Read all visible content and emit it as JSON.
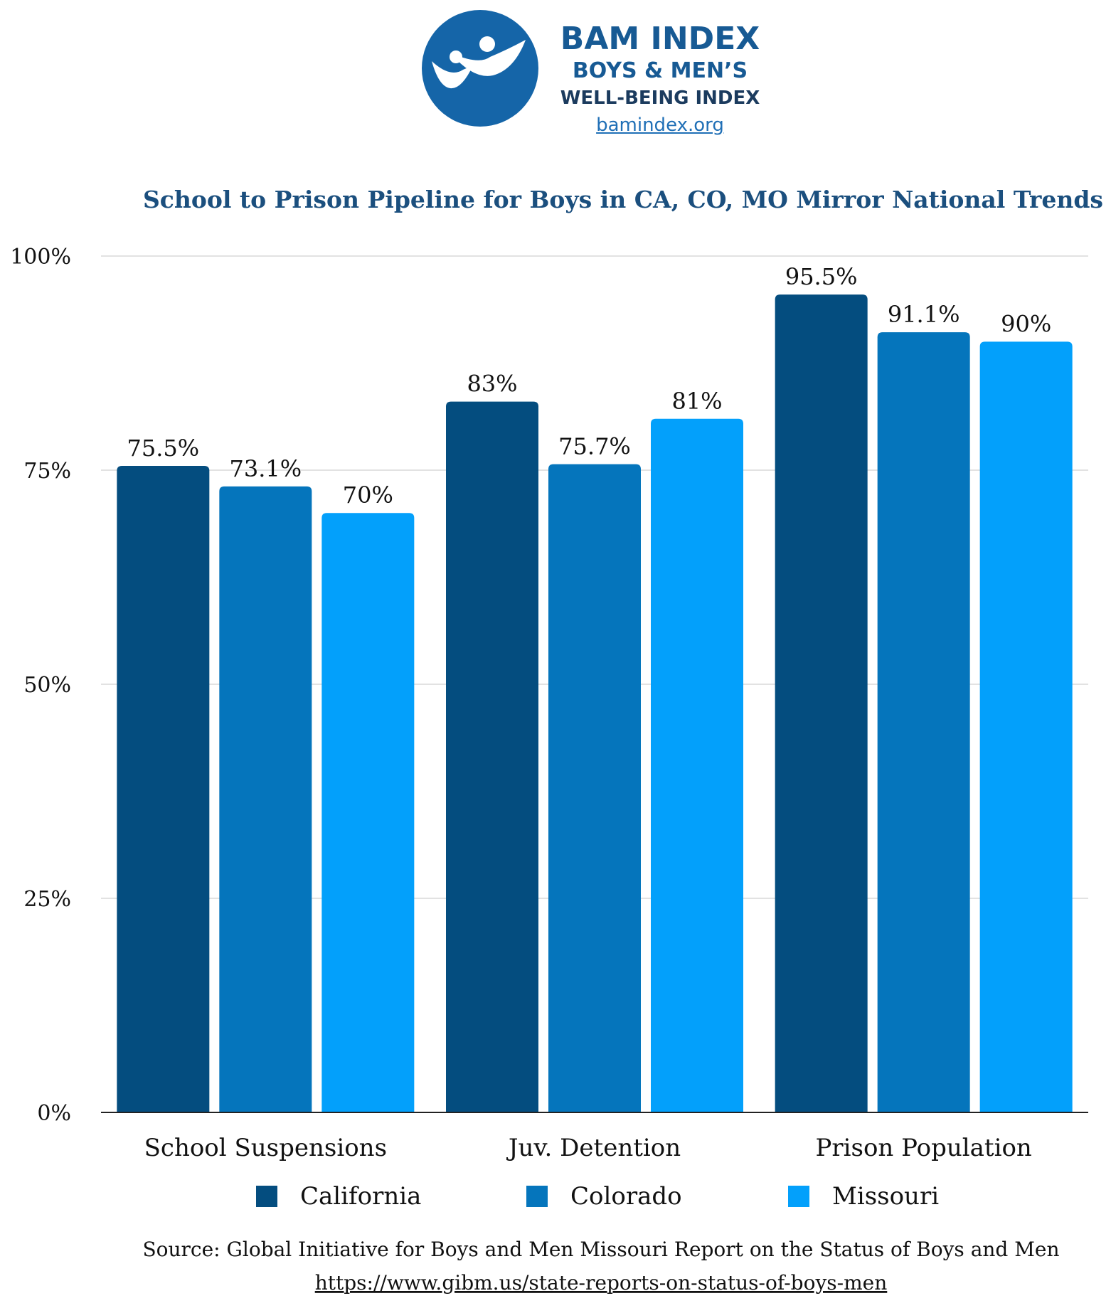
{
  "logo": {
    "line1": "BAM INDEX",
    "line2": "BOYS & MEN’S",
    "line3": "WELL-BEING INDEX",
    "url": "bamindex.org",
    "color": "#1565a8",
    "icon": "two-figures-icon"
  },
  "source": {
    "text": "Source: Global Initiative for Boys and Men Missouri Report on the Status of Boys and Men",
    "url": "https://www.gibm.us/state-reports-on-status-of-boys-men"
  },
  "chart_data": {
    "type": "bar",
    "title": "School to Prison Pipeline for Boys in CA, CO, MO Mirror National Trends",
    "categories": [
      "School Suspensions",
      "Juv. Detention",
      "Prison Population"
    ],
    "series": [
      {
        "name": "California",
        "color": "#044d7f",
        "values": [
          75.5,
          83,
          95.5
        ],
        "labels": [
          "75.5%",
          "83%",
          "95.5%"
        ]
      },
      {
        "name": "Colorado",
        "color": "#0575bc",
        "values": [
          73.1,
          75.7,
          91.1
        ],
        "labels": [
          "73.1%",
          "75.7%",
          "91.1%"
        ]
      },
      {
        "name": "Missouri",
        "color": "#03a0fb",
        "values": [
          70,
          81,
          90
        ],
        "labels": [
          "70%",
          "81%",
          "90%"
        ]
      }
    ],
    "ylim": [
      0,
      100
    ],
    "yticks": [
      0,
      25,
      50,
      75,
      100
    ],
    "ytick_labels": [
      "0%",
      "25%",
      "50%",
      "75%",
      "100%"
    ],
    "grid": true,
    "legend": "bottom"
  }
}
